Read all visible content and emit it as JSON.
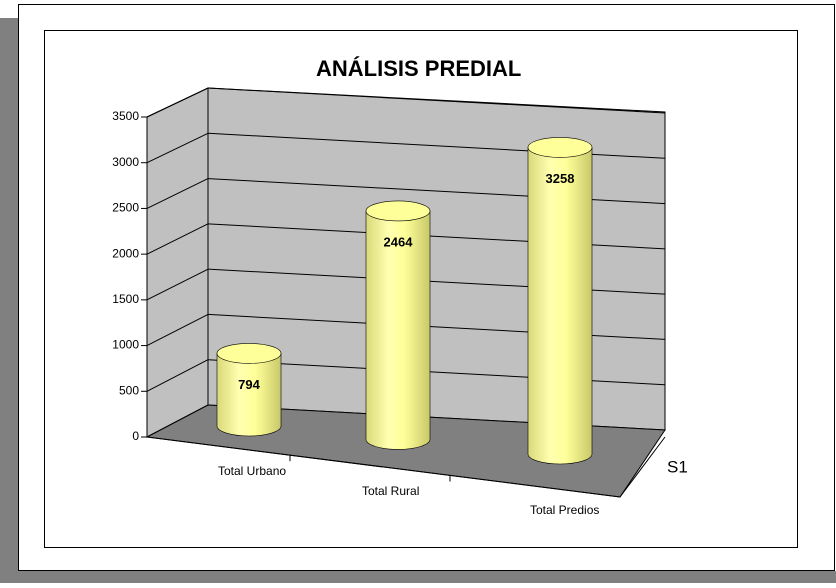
{
  "chart_data": {
    "type": "bar",
    "title": "ANÁLISIS PREDIAL",
    "categories": [
      "Total Urbano",
      "Total Rural",
      "Total Predios"
    ],
    "series": [
      {
        "name": "S1",
        "color": "#ffff99",
        "values": [
          794,
          2464,
          3258
        ]
      }
    ],
    "ylim": [
      0,
      3500
    ],
    "yticks": [
      0,
      500,
      1000,
      1500,
      2000,
      2500,
      3000,
      3500
    ],
    "grid": true
  }
}
